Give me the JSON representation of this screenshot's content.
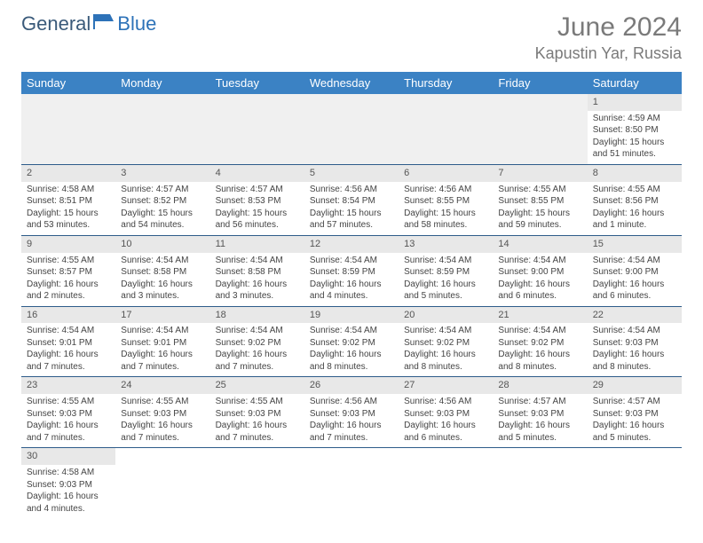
{
  "logo": {
    "text_left": "General",
    "text_right": "Blue",
    "color_left": "#3a5a7a",
    "color_right": "#2d72b8",
    "icon_color": "#2d72b8"
  },
  "header": {
    "month_title": "June 2024",
    "location": "Kapustin Yar, Russia"
  },
  "weekday_bg": "#3b82c4",
  "weekday_fg": "#ffffff",
  "daynum_bg": "#e8e8e8",
  "row_border": "#2e5c8a",
  "weekdays": [
    "Sunday",
    "Monday",
    "Tuesday",
    "Wednesday",
    "Thursday",
    "Friday",
    "Saturday"
  ],
  "weeks": [
    [
      null,
      null,
      null,
      null,
      null,
      null,
      {
        "n": "1",
        "sr": "Sunrise: 4:59 AM",
        "ss": "Sunset: 8:50 PM",
        "d1": "Daylight: 15 hours",
        "d2": "and 51 minutes."
      }
    ],
    [
      {
        "n": "2",
        "sr": "Sunrise: 4:58 AM",
        "ss": "Sunset: 8:51 PM",
        "d1": "Daylight: 15 hours",
        "d2": "and 53 minutes."
      },
      {
        "n": "3",
        "sr": "Sunrise: 4:57 AM",
        "ss": "Sunset: 8:52 PM",
        "d1": "Daylight: 15 hours",
        "d2": "and 54 minutes."
      },
      {
        "n": "4",
        "sr": "Sunrise: 4:57 AM",
        "ss": "Sunset: 8:53 PM",
        "d1": "Daylight: 15 hours",
        "d2": "and 56 minutes."
      },
      {
        "n": "5",
        "sr": "Sunrise: 4:56 AM",
        "ss": "Sunset: 8:54 PM",
        "d1": "Daylight: 15 hours",
        "d2": "and 57 minutes."
      },
      {
        "n": "6",
        "sr": "Sunrise: 4:56 AM",
        "ss": "Sunset: 8:55 PM",
        "d1": "Daylight: 15 hours",
        "d2": "and 58 minutes."
      },
      {
        "n": "7",
        "sr": "Sunrise: 4:55 AM",
        "ss": "Sunset: 8:55 PM",
        "d1": "Daylight: 15 hours",
        "d2": "and 59 minutes."
      },
      {
        "n": "8",
        "sr": "Sunrise: 4:55 AM",
        "ss": "Sunset: 8:56 PM",
        "d1": "Daylight: 16 hours",
        "d2": "and 1 minute."
      }
    ],
    [
      {
        "n": "9",
        "sr": "Sunrise: 4:55 AM",
        "ss": "Sunset: 8:57 PM",
        "d1": "Daylight: 16 hours",
        "d2": "and 2 minutes."
      },
      {
        "n": "10",
        "sr": "Sunrise: 4:54 AM",
        "ss": "Sunset: 8:58 PM",
        "d1": "Daylight: 16 hours",
        "d2": "and 3 minutes."
      },
      {
        "n": "11",
        "sr": "Sunrise: 4:54 AM",
        "ss": "Sunset: 8:58 PM",
        "d1": "Daylight: 16 hours",
        "d2": "and 3 minutes."
      },
      {
        "n": "12",
        "sr": "Sunrise: 4:54 AM",
        "ss": "Sunset: 8:59 PM",
        "d1": "Daylight: 16 hours",
        "d2": "and 4 minutes."
      },
      {
        "n": "13",
        "sr": "Sunrise: 4:54 AM",
        "ss": "Sunset: 8:59 PM",
        "d1": "Daylight: 16 hours",
        "d2": "and 5 minutes."
      },
      {
        "n": "14",
        "sr": "Sunrise: 4:54 AM",
        "ss": "Sunset: 9:00 PM",
        "d1": "Daylight: 16 hours",
        "d2": "and 6 minutes."
      },
      {
        "n": "15",
        "sr": "Sunrise: 4:54 AM",
        "ss": "Sunset: 9:00 PM",
        "d1": "Daylight: 16 hours",
        "d2": "and 6 minutes."
      }
    ],
    [
      {
        "n": "16",
        "sr": "Sunrise: 4:54 AM",
        "ss": "Sunset: 9:01 PM",
        "d1": "Daylight: 16 hours",
        "d2": "and 7 minutes."
      },
      {
        "n": "17",
        "sr": "Sunrise: 4:54 AM",
        "ss": "Sunset: 9:01 PM",
        "d1": "Daylight: 16 hours",
        "d2": "and 7 minutes."
      },
      {
        "n": "18",
        "sr": "Sunrise: 4:54 AM",
        "ss": "Sunset: 9:02 PM",
        "d1": "Daylight: 16 hours",
        "d2": "and 7 minutes."
      },
      {
        "n": "19",
        "sr": "Sunrise: 4:54 AM",
        "ss": "Sunset: 9:02 PM",
        "d1": "Daylight: 16 hours",
        "d2": "and 8 minutes."
      },
      {
        "n": "20",
        "sr": "Sunrise: 4:54 AM",
        "ss": "Sunset: 9:02 PM",
        "d1": "Daylight: 16 hours",
        "d2": "and 8 minutes."
      },
      {
        "n": "21",
        "sr": "Sunrise: 4:54 AM",
        "ss": "Sunset: 9:02 PM",
        "d1": "Daylight: 16 hours",
        "d2": "and 8 minutes."
      },
      {
        "n": "22",
        "sr": "Sunrise: 4:54 AM",
        "ss": "Sunset: 9:03 PM",
        "d1": "Daylight: 16 hours",
        "d2": "and 8 minutes."
      }
    ],
    [
      {
        "n": "23",
        "sr": "Sunrise: 4:55 AM",
        "ss": "Sunset: 9:03 PM",
        "d1": "Daylight: 16 hours",
        "d2": "and 7 minutes."
      },
      {
        "n": "24",
        "sr": "Sunrise: 4:55 AM",
        "ss": "Sunset: 9:03 PM",
        "d1": "Daylight: 16 hours",
        "d2": "and 7 minutes."
      },
      {
        "n": "25",
        "sr": "Sunrise: 4:55 AM",
        "ss": "Sunset: 9:03 PM",
        "d1": "Daylight: 16 hours",
        "d2": "and 7 minutes."
      },
      {
        "n": "26",
        "sr": "Sunrise: 4:56 AM",
        "ss": "Sunset: 9:03 PM",
        "d1": "Daylight: 16 hours",
        "d2": "and 7 minutes."
      },
      {
        "n": "27",
        "sr": "Sunrise: 4:56 AM",
        "ss": "Sunset: 9:03 PM",
        "d1": "Daylight: 16 hours",
        "d2": "and 6 minutes."
      },
      {
        "n": "28",
        "sr": "Sunrise: 4:57 AM",
        "ss": "Sunset: 9:03 PM",
        "d1": "Daylight: 16 hours",
        "d2": "and 5 minutes."
      },
      {
        "n": "29",
        "sr": "Sunrise: 4:57 AM",
        "ss": "Sunset: 9:03 PM",
        "d1": "Daylight: 16 hours",
        "d2": "and 5 minutes."
      }
    ],
    [
      {
        "n": "30",
        "sr": "Sunrise: 4:58 AM",
        "ss": "Sunset: 9:03 PM",
        "d1": "Daylight: 16 hours",
        "d2": "and 4 minutes."
      },
      null,
      null,
      null,
      null,
      null,
      null
    ]
  ]
}
